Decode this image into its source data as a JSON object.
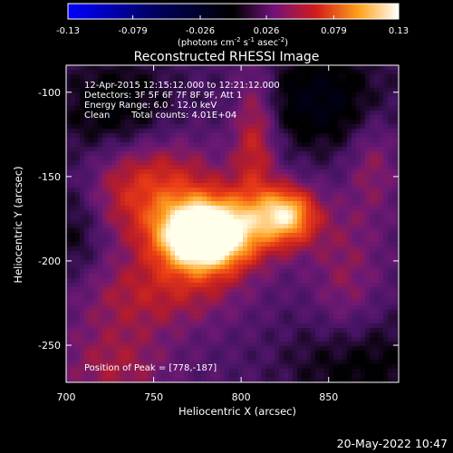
{
  "chart_data": {
    "type": "heatmap",
    "title": "Reconstructed RHESSI Image",
    "xlabel": "Heliocentric X (arcsec)",
    "ylabel": "Heliocentric Y (arcsec)",
    "xlim": [
      700,
      890
    ],
    "ylim": [
      -272,
      -84
    ],
    "xticks": [
      700,
      750,
      800,
      850
    ],
    "yticks": [
      -100,
      -150,
      -200,
      -250
    ],
    "colorbar": {
      "ticks": [
        "-0.13",
        "-0.079",
        "-0.026",
        "0.026",
        "0.079",
        "0.13"
      ],
      "range": [
        -0.13,
        0.13
      ],
      "units_prefix": "(photons cm",
      "units_exp1": "-2",
      "units_mid": " s",
      "units_exp2": "-1",
      "units_mid2": " asec",
      "units_exp3": "-2",
      "units_suffix": ")"
    },
    "sources": [
      {
        "x": 778,
        "y": -187,
        "peak": 0.13
      },
      {
        "x": 826,
        "y": -172,
        "peak": 0.1
      },
      {
        "x": 748,
        "y": -155,
        "peak": 0.06
      },
      {
        "x": 808,
        "y": -126,
        "peak": 0.05
      }
    ],
    "annotations": {
      "time": "12-Apr-2015 12:15:12.000 to 12:21:12.000",
      "detectors": "Detectors: 3F 5F 6F 7F 8F 9F, Att 1",
      "energy": "Energy Range: 6.0 - 12.0 keV",
      "algorithm": "Clean",
      "counts": "Total counts: 4.01E+04",
      "peak": "Position of Peak = [778,-187]"
    }
  },
  "footer": {
    "date": "20-May-2022 10:47"
  }
}
